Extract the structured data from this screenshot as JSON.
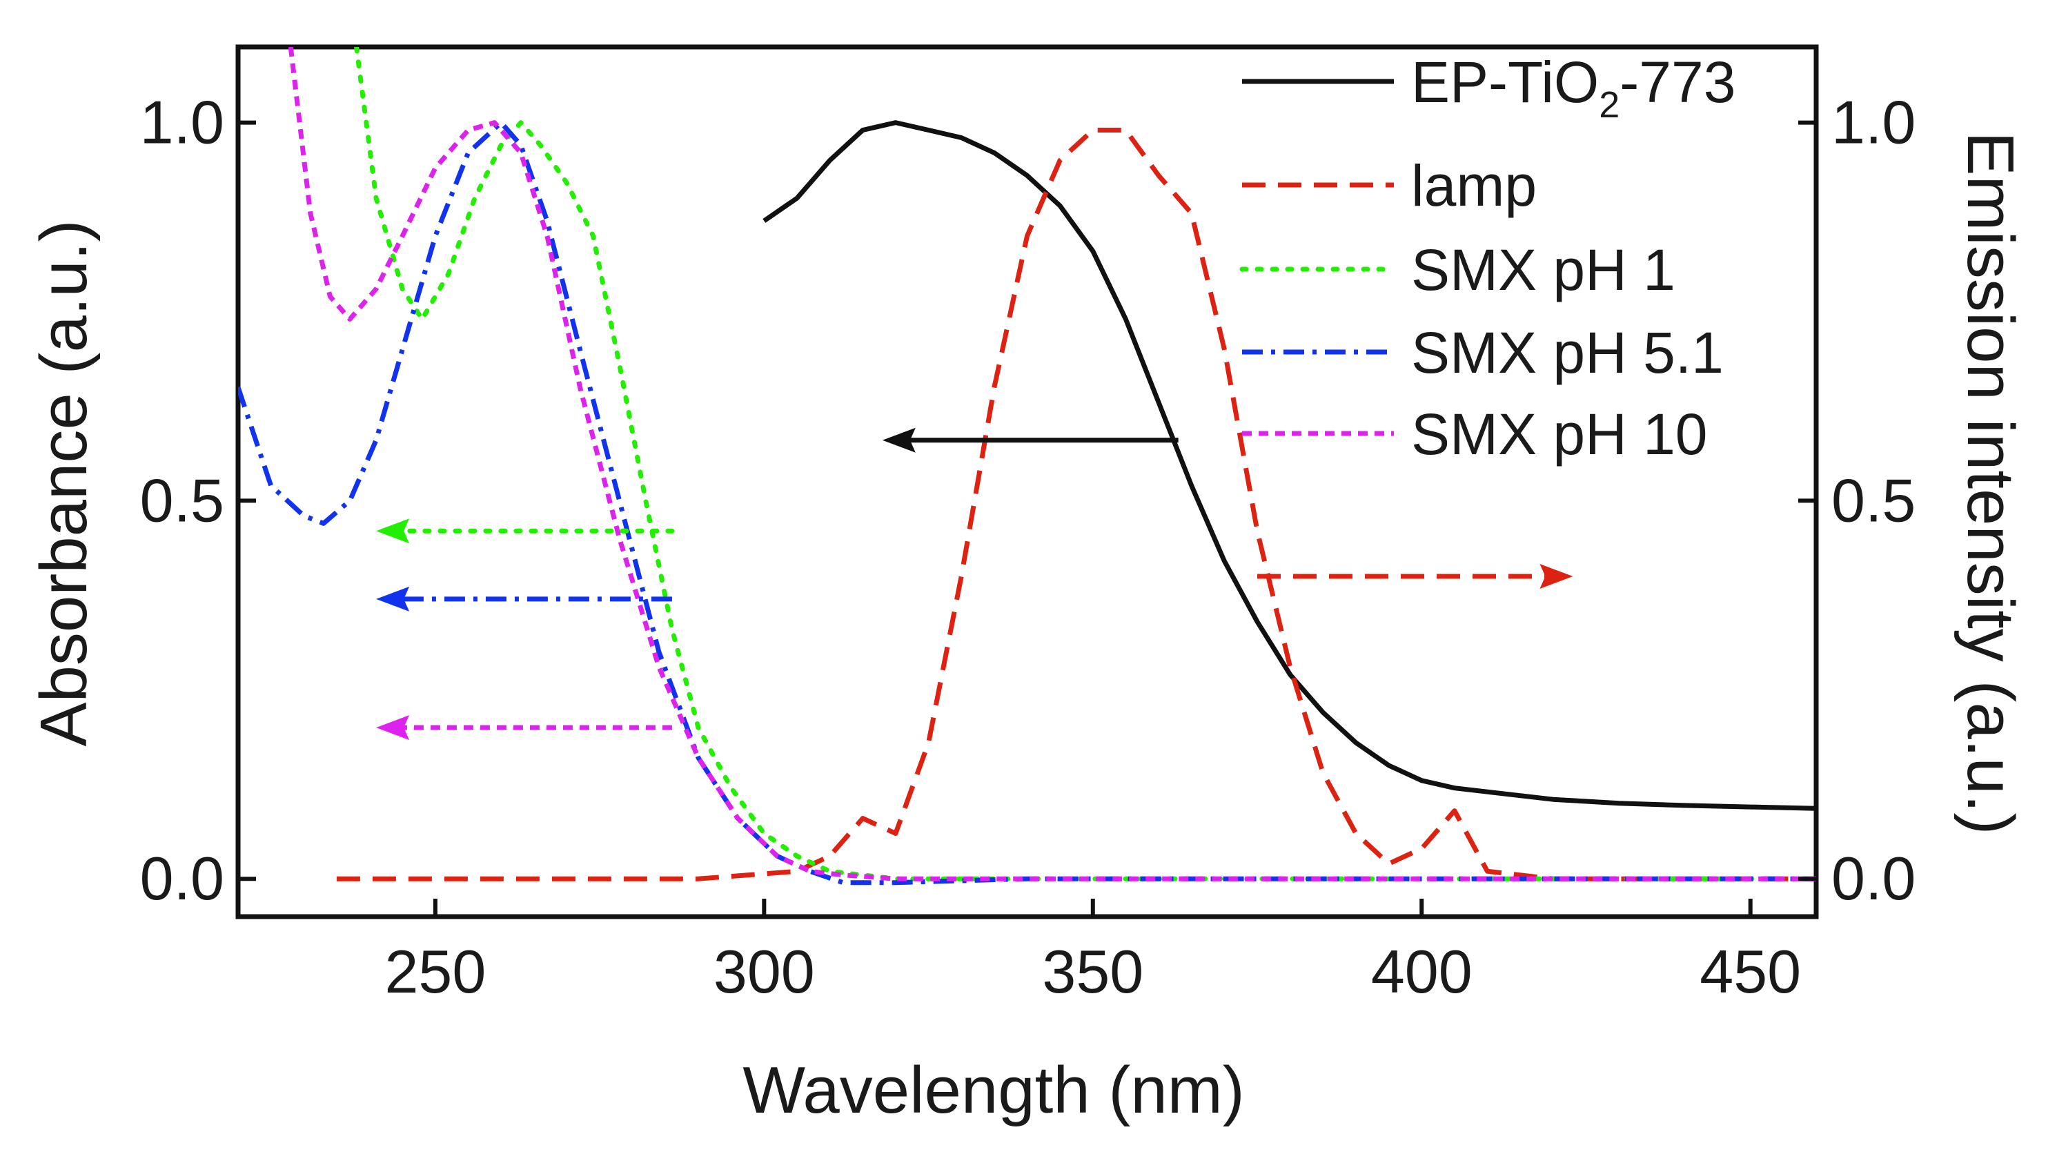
{
  "chart_data": {
    "type": "line",
    "xlabel": "Wavelength (nm)",
    "ylabel_left": "Absorbance (a.u.)",
    "ylabel_right": "Emission intensity (a.u.)",
    "xlim": [
      220,
      460
    ],
    "ylim_left": [
      -0.05,
      1.1
    ],
    "ylim_right": [
      -0.05,
      1.1
    ],
    "xticks": [
      250,
      300,
      350,
      400,
      450
    ],
    "xtick_labels": [
      "250",
      "300",
      "350",
      "400",
      "450"
    ],
    "yticks_left": [
      0.0,
      0.5,
      1.0
    ],
    "ytick_labels_left": [
      "0.0",
      "0.5",
      "1.0"
    ],
    "yticks_right": [
      0.0,
      0.5,
      1.0
    ],
    "ytick_labels_right": [
      "0.0",
      "0.5",
      "1.0"
    ],
    "legend_position": "top-right",
    "grid": false,
    "series": [
      {
        "id": "ep",
        "name": "EP-TiO",
        "name_sub": "2",
        "name_suffix": "-773",
        "color": "#111111",
        "style": "solid",
        "axis": "left",
        "x": [
          300,
          305,
          310,
          315,
          320,
          325,
          330,
          335,
          340,
          345,
          350,
          355,
          360,
          365,
          370,
          375,
          380,
          385,
          390,
          395,
          400,
          405,
          410,
          420,
          430,
          440,
          450,
          460
        ],
        "y": [
          0.87,
          0.9,
          0.95,
          0.99,
          1.0,
          0.99,
          0.98,
          0.96,
          0.93,
          0.89,
          0.83,
          0.74,
          0.63,
          0.52,
          0.42,
          0.34,
          0.27,
          0.22,
          0.18,
          0.15,
          0.13,
          0.12,
          0.115,
          0.105,
          0.1,
          0.097,
          0.095,
          0.093
        ]
      },
      {
        "id": "lamp",
        "name": "lamp",
        "color": "#dd2211",
        "style": "dashed",
        "axis": "right",
        "x": [
          235,
          260,
          290,
          305,
          310,
          315,
          320,
          325,
          330,
          335,
          340,
          345,
          350,
          355,
          360,
          365,
          370,
          375,
          380,
          385,
          390,
          395,
          400,
          405,
          410,
          420,
          440,
          460
        ],
        "y": [
          0.0,
          0.0,
          0.0,
          0.01,
          0.03,
          0.08,
          0.06,
          0.18,
          0.4,
          0.65,
          0.85,
          0.95,
          0.99,
          0.99,
          0.93,
          0.88,
          0.7,
          0.46,
          0.28,
          0.14,
          0.06,
          0.02,
          0.04,
          0.09,
          0.01,
          0.0,
          0.0,
          0.0
        ]
      },
      {
        "id": "ph1",
        "name": "SMX pH 1",
        "color": "#22ee00",
        "style": "dotted",
        "axis": "left",
        "x": [
          238,
          241,
          245,
          248,
          252,
          256,
          260,
          263,
          266,
          270,
          274,
          278,
          282,
          286,
          290,
          295,
          300,
          305,
          310,
          320,
          340,
          380,
          420,
          460
        ],
        "y": [
          1.1,
          0.9,
          0.78,
          0.74,
          0.8,
          0.9,
          0.97,
          1.0,
          0.97,
          0.92,
          0.85,
          0.68,
          0.5,
          0.33,
          0.2,
          0.12,
          0.06,
          0.03,
          0.01,
          0.0,
          0.0,
          0.0,
          0.0,
          0.0
        ]
      },
      {
        "id": "ph51",
        "name": "SMX pH 5.1",
        "color": "#1133ee",
        "style": "dashdot",
        "axis": "left",
        "x": [
          220,
          225,
          230,
          233,
          237,
          241,
          245,
          250,
          255,
          260,
          263,
          267,
          272,
          278,
          284,
          290,
          296,
          302,
          307,
          312,
          320,
          340,
          380,
          420,
          460
        ],
        "y": [
          0.65,
          0.52,
          0.48,
          0.47,
          0.5,
          0.58,
          0.7,
          0.85,
          0.96,
          1.0,
          0.97,
          0.87,
          0.7,
          0.5,
          0.3,
          0.16,
          0.08,
          0.03,
          0.01,
          -0.005,
          -0.005,
          0.0,
          0.0,
          0.0,
          0.0
        ]
      },
      {
        "id": "ph10",
        "name": "SMX pH 10",
        "color": "#dd22ee",
        "style": "short-dash",
        "axis": "left",
        "x": [
          228,
          231,
          234,
          237,
          241,
          245,
          250,
          255,
          259,
          263,
          267,
          272,
          278,
          284,
          290,
          296,
          302,
          307,
          312,
          320,
          340,
          380,
          420,
          460
        ],
        "y": [
          1.1,
          0.88,
          0.77,
          0.74,
          0.78,
          0.85,
          0.94,
          0.99,
          1.0,
          0.96,
          0.85,
          0.65,
          0.45,
          0.28,
          0.16,
          0.08,
          0.03,
          0.01,
          0.005,
          0.0,
          0.0,
          0.0,
          0.0,
          0.0
        ]
      }
    ],
    "annotations": [
      {
        "id": "arrow-ep",
        "type": "arrow",
        "color": "#111111",
        "style": "solid",
        "from": [
          363,
          0.58
        ],
        "to": [
          318,
          0.58
        ],
        "axis": "left"
      },
      {
        "id": "arrow-lamp",
        "type": "arrow",
        "color": "#dd2211",
        "style": "dashed",
        "from": [
          375,
          0.4
        ],
        "to": [
          423,
          0.4
        ],
        "axis": "right"
      },
      {
        "id": "arrow-ph1",
        "type": "arrow",
        "color": "#22ee00",
        "style": "dotted",
        "from": [
          286,
          0.46
        ],
        "to": [
          241,
          0.46
        ],
        "axis": "left"
      },
      {
        "id": "arrow-ph51",
        "type": "arrow",
        "color": "#1133ee",
        "style": "dashdot",
        "from": [
          286,
          0.37
        ],
        "to": [
          241,
          0.37
        ],
        "axis": "left"
      },
      {
        "id": "arrow-ph10",
        "type": "arrow",
        "color": "#dd22ee",
        "style": "short-dash",
        "from": [
          286,
          0.2
        ],
        "to": [
          241,
          0.2
        ],
        "axis": "left"
      }
    ]
  }
}
